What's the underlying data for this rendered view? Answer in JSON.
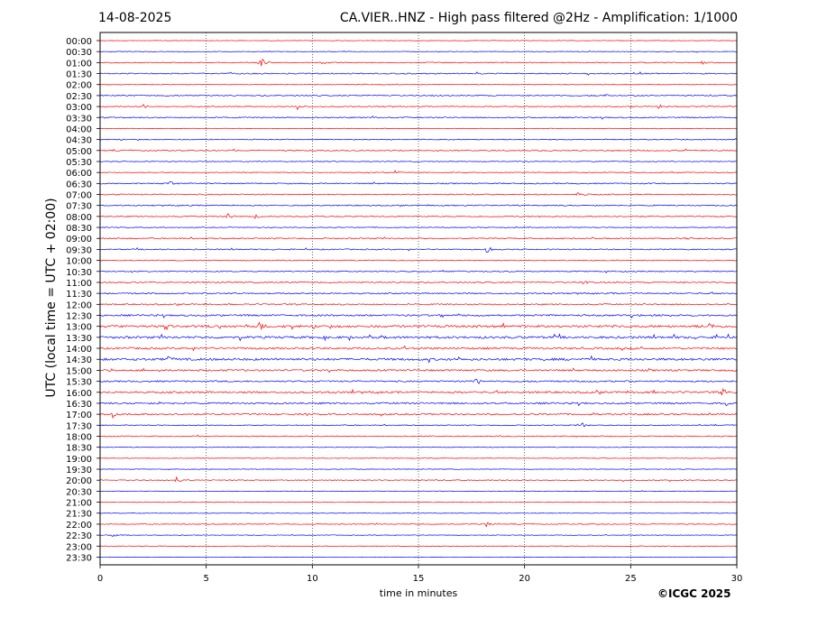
{
  "header": {
    "date": "14-08-2025",
    "title": "CA.VIER..HNZ - High pass filtered @2Hz - Amplification: 1/1000"
  },
  "footer": {
    "copyright": "©ICGC 2025"
  },
  "chart_data": {
    "type": "line",
    "title": "CA.VIER..HNZ - High pass filtered @2Hz - Amplification: 1/1000",
    "xlabel": "time in minutes",
    "ylabel": "UTC (local time = UTC + 02:00)",
    "xlim": [
      0,
      30
    ],
    "x_ticks": [
      0,
      5,
      10,
      15,
      20,
      25,
      30
    ],
    "grid": "vertical dotted at 5-minute intervals",
    "colors": {
      "odd_hour": "#ff0000",
      "half_hour": "#0000ff",
      "frame": "#000000",
      "grid": "#000000"
    },
    "series_labels": [
      "00:00",
      "00:30",
      "01:00",
      "01:30",
      "02:00",
      "02:30",
      "03:00",
      "03:30",
      "04:00",
      "04:30",
      "05:00",
      "05:30",
      "06:00",
      "06:30",
      "07:00",
      "07:30",
      "08:00",
      "08:30",
      "09:00",
      "09:30",
      "10:00",
      "10:30",
      "11:00",
      "11:30",
      "12:00",
      "12:30",
      "13:00",
      "13:30",
      "14:00",
      "14:30",
      "15:00",
      "15:30",
      "16:00",
      "16:30",
      "17:00",
      "17:30",
      "18:00",
      "18:30",
      "19:00",
      "19:30",
      "20:00",
      "20:30",
      "21:00",
      "21:30",
      "22:00",
      "22:30",
      "23:00",
      "23:30"
    ],
    "series_colors": [
      "red",
      "blue",
      "red",
      "blue",
      "red",
      "blue",
      "red",
      "blue",
      "red",
      "blue",
      "red",
      "blue",
      "red",
      "blue",
      "red",
      "blue",
      "red",
      "blue",
      "red",
      "blue",
      "red",
      "blue",
      "red",
      "blue",
      "red",
      "blue",
      "red",
      "blue",
      "red",
      "blue",
      "red",
      "blue",
      "red",
      "blue",
      "red",
      "blue",
      "red",
      "blue",
      "red",
      "blue",
      "red",
      "blue",
      "red",
      "blue",
      "red",
      "blue",
      "red",
      "blue"
    ],
    "noise_level": [
      0.3,
      0.3,
      0.5,
      0.6,
      0.3,
      0.6,
      0.5,
      0.6,
      0.3,
      0.5,
      0.6,
      0.4,
      0.4,
      0.6,
      0.6,
      0.6,
      0.6,
      0.4,
      0.6,
      0.6,
      0.5,
      0.6,
      0.7,
      0.7,
      0.7,
      0.9,
      1.2,
      1.2,
      1.0,
      1.2,
      0.9,
      0.8,
      1.0,
      0.9,
      0.8,
      0.5,
      0.5,
      0.4,
      0.3,
      0.3,
      0.5,
      0.3,
      0.4,
      0.3,
      0.4,
      0.3,
      0.3,
      0.2
    ],
    "events": [
      {
        "row": 2,
        "t": 7.6,
        "amp": 6
      },
      {
        "row": 2,
        "t": 28.3,
        "amp": 3
      },
      {
        "row": 5,
        "t": 23.7,
        "amp": 3
      },
      {
        "row": 5,
        "t": 25.1,
        "amp": 3
      },
      {
        "row": 6,
        "t": 2.0,
        "amp": 4
      },
      {
        "row": 6,
        "t": 9.3,
        "amp": 3
      },
      {
        "row": 6,
        "t": 26.3,
        "amp": 3
      },
      {
        "row": 7,
        "t": 12.8,
        "amp": 3
      },
      {
        "row": 9,
        "t": 27.1,
        "amp": 4
      },
      {
        "row": 12,
        "t": 13.9,
        "amp": 3
      },
      {
        "row": 13,
        "t": 3.3,
        "amp": 3
      },
      {
        "row": 14,
        "t": 22.5,
        "amp": 4
      },
      {
        "row": 16,
        "t": 6.0,
        "amp": 4
      },
      {
        "row": 16,
        "t": 7.3,
        "amp": 3
      },
      {
        "row": 18,
        "t": 27.6,
        "amp": 3
      },
      {
        "row": 19,
        "t": 18.2,
        "amp": 5
      },
      {
        "row": 22,
        "t": 22.8,
        "amp": 3
      },
      {
        "row": 26,
        "t": 7.5,
        "amp": 4
      },
      {
        "row": 26,
        "t": 28.7,
        "amp": 4
      },
      {
        "row": 29,
        "t": 3.2,
        "amp": 3
      },
      {
        "row": 31,
        "t": 17.7,
        "amp": 7
      },
      {
        "row": 32,
        "t": 29.3,
        "amp": 4
      },
      {
        "row": 33,
        "t": 29.5,
        "amp": 3
      },
      {
        "row": 34,
        "t": 0.6,
        "amp": 4
      },
      {
        "row": 35,
        "t": 22.7,
        "amp": 4
      },
      {
        "row": 40,
        "t": 3.6,
        "amp": 3
      },
      {
        "row": 44,
        "t": 18.2,
        "amp": 3
      },
      {
        "row": 45,
        "t": 0.6,
        "amp": 2
      }
    ]
  }
}
